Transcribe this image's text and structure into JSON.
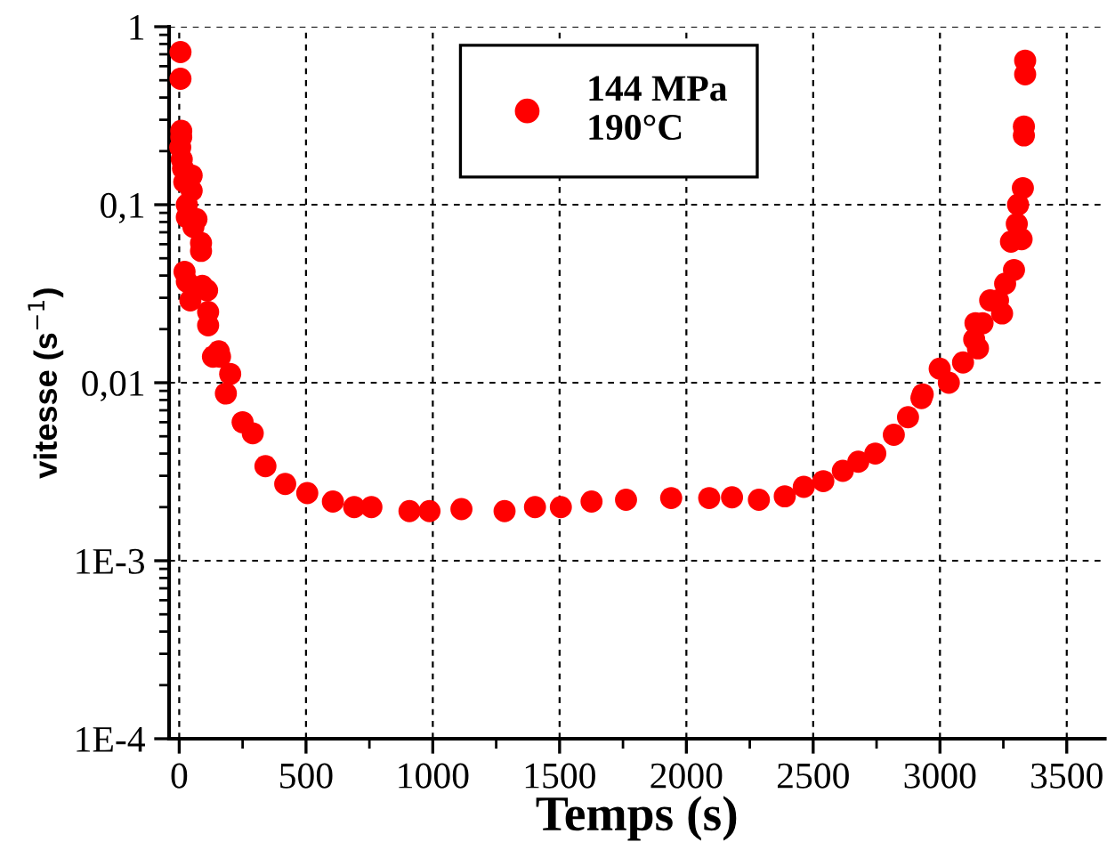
{
  "chart_data": {
    "type": "scatter",
    "xlabel": "Temps (s)",
    "ylabel": "vitesse (s$^{−1}$)",
    "log": "y",
    "xlim": [
      -40,
      3650
    ],
    "ylim": [
      0.0001,
      1
    ],
    "xticks": [
      0,
      500,
      1000,
      1500,
      2000,
      2500,
      3000,
      3500
    ],
    "yticks": [
      {
        "value": 0.0001,
        "label": "1E-4"
      },
      {
        "value": 0.001,
        "label": "1E-3"
      },
      {
        "value": 0.01,
        "label": "0,01"
      },
      {
        "value": 0.1,
        "label": "0,1"
      },
      {
        "value": 1,
        "label": "1"
      }
    ],
    "grid": true,
    "legend": "top",
    "marker": "circle",
    "series": [
      {
        "name": "144 MPa\n190°C",
        "color": "#ff0000",
        "x": [
          5,
          5,
          8,
          8,
          4,
          10,
          15,
          49,
          20,
          49,
          30,
          30,
          68,
          56,
          86,
          86,
          21,
          30,
          91,
          110,
          44,
          114,
          114,
          156,
          133,
          161,
          201,
          184,
          250,
          290,
          340,
          418,
          505,
          606,
          690,
          758,
          908,
          987,
          1113,
          1283,
          1403,
          1505,
          1626,
          1762,
          1940,
          2090,
          2180,
          2286,
          2388,
          2463,
          2540,
          2617,
          2678,
          2745,
          2818,
          2874,
          2927,
          2932,
          2999,
          3035,
          3091,
          3150,
          3135,
          3140,
          3168,
          3245,
          3229,
          3198,
          3257,
          3292,
          3280,
          3322,
          3303,
          3308,
          3327,
          3331,
          3331,
          3336,
          3336
        ],
        "values": [
          0.72,
          0.51,
          0.26,
          0.24,
          0.21,
          0.18,
          0.16,
          0.146,
          0.134,
          0.12,
          0.1,
          0.085,
          0.083,
          0.075,
          0.061,
          0.055,
          0.042,
          0.037,
          0.035,
          0.033,
          0.029,
          0.025,
          0.021,
          0.015,
          0.014,
          0.014,
          0.0112,
          0.0087,
          0.006,
          0.0052,
          0.0034,
          0.0027,
          0.0024,
          0.00215,
          0.002,
          0.002,
          0.0019,
          0.0019,
          0.00195,
          0.0019,
          0.002,
          0.002,
          0.00215,
          0.0022,
          0.00225,
          0.00225,
          0.00227,
          0.0022,
          0.0023,
          0.0026,
          0.0028,
          0.0032,
          0.0036,
          0.004,
          0.0051,
          0.0064,
          0.0082,
          0.0086,
          0.012,
          0.01,
          0.013,
          0.0156,
          0.0175,
          0.0216,
          0.0216,
          0.0245,
          0.029,
          0.029,
          0.036,
          0.043,
          0.062,
          0.064,
          0.078,
          0.1,
          0.124,
          0.245,
          0.275,
          0.54,
          0.645
        ]
      }
    ]
  }
}
